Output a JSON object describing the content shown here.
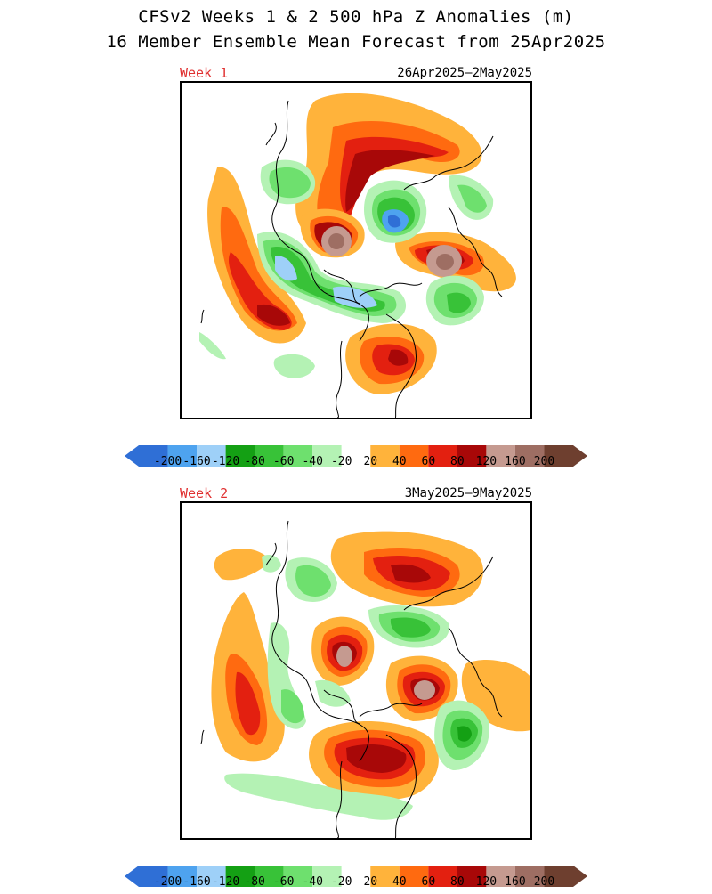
{
  "title_line1": "CFSv2 Weeks 1 & 2 500 hPa Z Anomalies (m)",
  "title_line2": "16 Member Ensemble Mean Forecast from 25Apr2025",
  "panels": [
    {
      "week": "Week 1",
      "dates": "26Apr2025–2May2025"
    },
    {
      "week": "Week 2",
      "dates": "3May2025–9May2025"
    }
  ],
  "colorbar": {
    "labels": [
      "-200",
      "-160",
      "-120",
      "-80",
      "-60",
      "-40",
      "-20",
      "20",
      "40",
      "60",
      "80",
      "120",
      "160",
      "200"
    ],
    "colors": [
      "#2f6fd6",
      "#4ea3ef",
      "#9ed0f8",
      "#14a014",
      "#38c238",
      "#6ee06e",
      "#b4f2b4",
      "#ffffff",
      "#ffb33b",
      "#ff6a10",
      "#e32010",
      "#a80808",
      "#c59a90",
      "#9e6e63",
      "#6e3f2f"
    ],
    "extend_left_color": "#2f6fd6",
    "extend_right_color": "#6e3f2f"
  }
}
